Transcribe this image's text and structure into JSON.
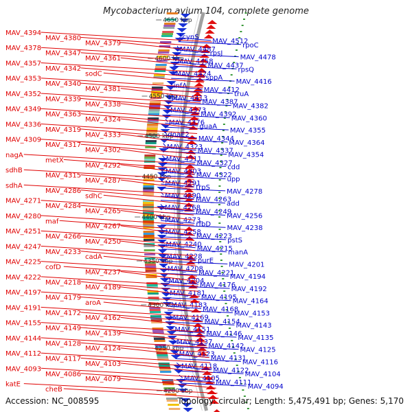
{
  "title": "Mycobacterium avium 104, complete genome",
  "footer": {
    "accession": "Accession: NC_008595",
    "summary": "Topology: circular; Length: 5,475,491 bp; Genes: 5,170"
  },
  "colors": {
    "left_labels": "#e00000",
    "right_labels": "#0000cc",
    "backbone": "#a0a0a0"
  },
  "ticks": [
    "4650 kbp",
    "4600 kbp",
    "4550 kbp",
    "4500 kbp",
    "4450 kbp",
    "4400 kbp",
    "4350 kbp",
    "4300 kbp",
    "4250 kbp",
    "4200 kbp"
  ],
  "left_labels": [
    "MAV_4394",
    "MAV_4380",
    "MAV_4379",
    "MAV_4378",
    "MAV_4347",
    "MAV_4361",
    "MAV_4357",
    "MAV_4342",
    "sodC",
    "MAV_4353",
    "MAV_4340",
    "MAV_4381",
    "MAV_4352",
    "MAV_4339",
    "MAV_4338",
    "MAV_4349",
    "MAV_4363",
    "MAV_4324",
    "MAV_4336",
    "MAV_4319",
    "MAV_4333",
    "MAV_4309",
    "MAV_4317",
    "MAV_4302",
    "nagA",
    "metX",
    "MAV_4292",
    "sdhB",
    "MAV_4315",
    "MAV_4287",
    "sdhA",
    "MAV_4286",
    "sdhC",
    "MAV_4271",
    "MAV_4284",
    "MAV_4265",
    "MAV_4280",
    "maf",
    "MAV_4267",
    "MAV_4251",
    "MAV_4266",
    "MAV_4250",
    "MAV_4247",
    "MAV_4233",
    "cadA",
    "MAV_4225",
    "cofD",
    "MAV_4237",
    "MAV_4222",
    "MAV_4218",
    "MAV_4189",
    "MAV_4197",
    "MAV_4179",
    "aroA",
    "MAV_4191",
    "MAV_4172",
    "MAV_4162",
    "MAV_4155",
    "MAV_4149",
    "MAV_4139",
    "MAV_4144",
    "MAV_4128",
    "MAV_4124",
    "MAV_4112",
    "MAV_4117",
    "MAV_4103",
    "MAV_4093",
    "MAV_4086",
    "MAV_4079",
    "katE",
    "cheB"
  ],
  "right_labels": [
    "cynS",
    "MAV_4512",
    "rpoC",
    "MAV_4487",
    "rpsJ",
    "MAV_4478",
    "MAV_4458",
    "MAV_4437",
    "rpsQ",
    "MAV_4424",
    "sppA",
    "MAV_4416",
    "infA",
    "MAV_4412",
    "truA",
    "MAV_4413",
    "MAV_4387",
    "MAV_4382",
    "MAV_4373",
    "MAV_4392",
    "MAV_4360",
    "MAV_4376",
    "guaA",
    "MAV_4355",
    "dnaE2",
    "MAV_4344",
    "MAV_4364",
    "MAV_4323",
    "MAV_4337",
    "MAV_4354",
    "MAV_4311",
    "MAV_4327",
    "cdd",
    "MAV_4303",
    "MAV_4322",
    "upp",
    "MAV_4291",
    "trpS",
    "MAV_4278",
    "MAV_4290",
    "MAV_4263",
    "add",
    "MAV_4268",
    "MAV_4249",
    "MAV_4256",
    "MAV_4273",
    "rfbD",
    "MAV_4238",
    "MAV_4258",
    "MAV_4223",
    "pstS",
    "MAV_4240",
    "MAV_4215",
    "manA",
    "MAV_4228",
    "purE",
    "MAV_4201",
    "MAV_4208",
    "MAV_4221",
    "MAV_4194",
    "MAV_4204",
    "MAV_4176",
    "MAV_4192",
    "MAV_4181",
    "MAV_4195",
    "MAV_4164",
    "MAV_4183",
    "MAV_4168",
    "MAV_4153",
    "MAV_4169",
    "MAV_4154",
    "MAV_4143",
    "MAV_4151",
    "MAV_4146",
    "MAV_4135",
    "MAV_4137",
    "MAV_4142",
    "MAV_4125",
    "MAV_4123",
    "MAV_4131",
    "MAV_4116",
    "MAV_4118",
    "MAV_4122",
    "MAV_4104",
    "MAV_4105",
    "MAV_4111",
    "MAV_4094"
  ]
}
